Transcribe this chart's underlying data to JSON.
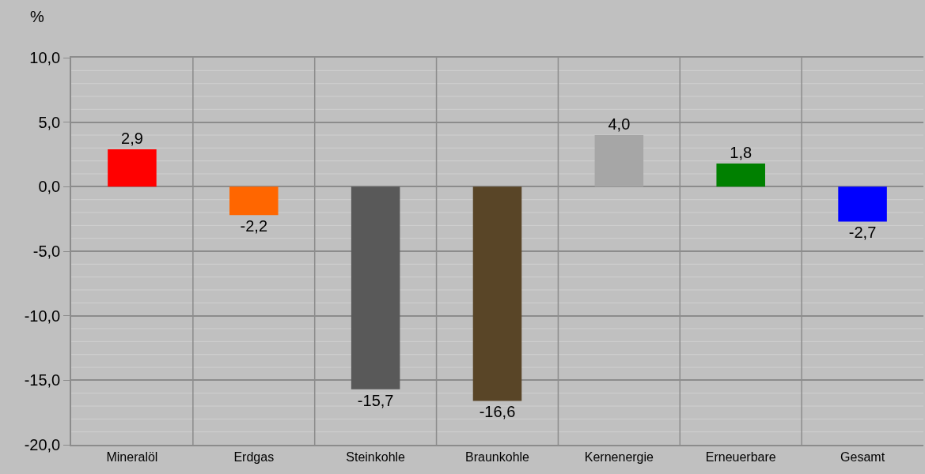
{
  "chart_data": {
    "type": "bar",
    "ylabel": "%",
    "categories": [
      "Mineralöl",
      "Erdgas",
      "Steinkohle",
      "Braunkohle",
      "Kernenergie",
      "Erneuerbare",
      "Gesamt"
    ],
    "values": [
      2.9,
      -2.2,
      -15.7,
      -16.6,
      4.0,
      1.8,
      -2.7
    ],
    "colors": [
      "#ff0000",
      "#ff6600",
      "#595959",
      "#594527",
      "#a6a6a6",
      "#008000",
      "#0000ff"
    ],
    "value_labels": [
      "2,9",
      "-2,2",
      "-15,7",
      "-16,6",
      "4,0",
      "1,8",
      "-2,7"
    ],
    "ylim": [
      -20,
      10
    ],
    "yticks": [
      {
        "value": -20,
        "label": "-20,0"
      },
      {
        "value": -15,
        "label": "-15,0"
      },
      {
        "value": -10,
        "label": "-10,0"
      },
      {
        "value": -5,
        "label": "-5,0"
      },
      {
        "value": 0,
        "label": "0,0"
      },
      {
        "value": 5,
        "label": "5,0"
      },
      {
        "value": 10,
        "label": "10,0"
      }
    ],
    "grid": true,
    "legend": false
  }
}
